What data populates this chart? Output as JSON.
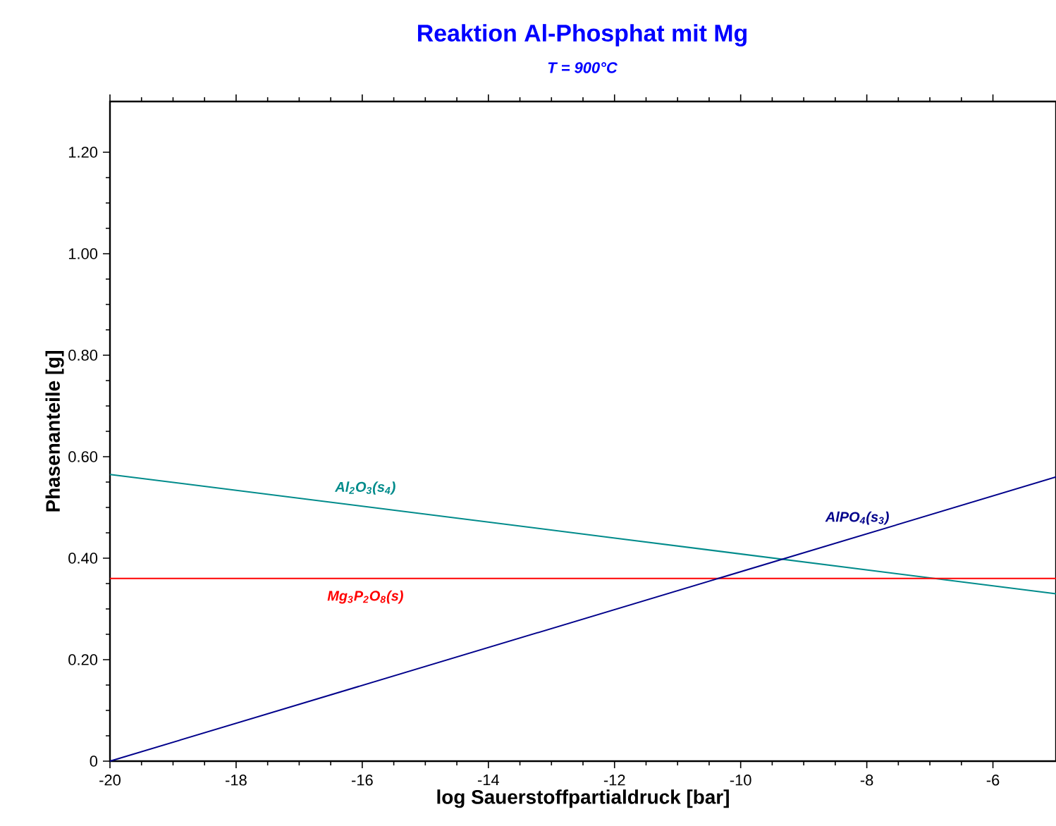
{
  "chart_data": {
    "type": "line",
    "title": "Reaktion Al-Phosphat mit Mg",
    "subtitle": "T = 900°C",
    "xlabel": "log Sauerstoffpartialdruck  [bar]",
    "ylabel": "Phasenanteile [g]",
    "xlim": [
      -20,
      -5
    ],
    "ylim": [
      0,
      1.3
    ],
    "xticks": [
      -20,
      -18,
      -16,
      -14,
      -12,
      -10,
      -8,
      -6
    ],
    "yticks": [
      0,
      {
        "value": 0.2,
        "label": "0.20"
      },
      {
        "value": 0.4,
        "label": "0.40"
      },
      {
        "value": 0.6,
        "label": "0.60"
      },
      {
        "value": 0.8,
        "label": "0.80"
      },
      {
        "value": 1.0,
        "label": "1.00"
      },
      {
        "value": 1.2,
        "label": "1.20"
      }
    ],
    "x": [
      -20,
      -5
    ],
    "grid": false,
    "marker": "none",
    "line_style": "solid",
    "series": [
      {
        "name": "Al$_{2}$O$_{3}$(s$_{4}$)",
        "color": "#008b8b",
        "values": [
          0.565,
          0.33
        ]
      },
      {
        "name": "Mg$_{3}$P$_{2}$O$_{8}$(s)",
        "color": "#ff0000",
        "values": [
          0.36,
          0.36
        ]
      },
      {
        "name": "AlPO$_{4}$(s$_{3}$)",
        "color": "#00008b",
        "values": [
          0,
          0.56
        ]
      }
    ]
  }
}
